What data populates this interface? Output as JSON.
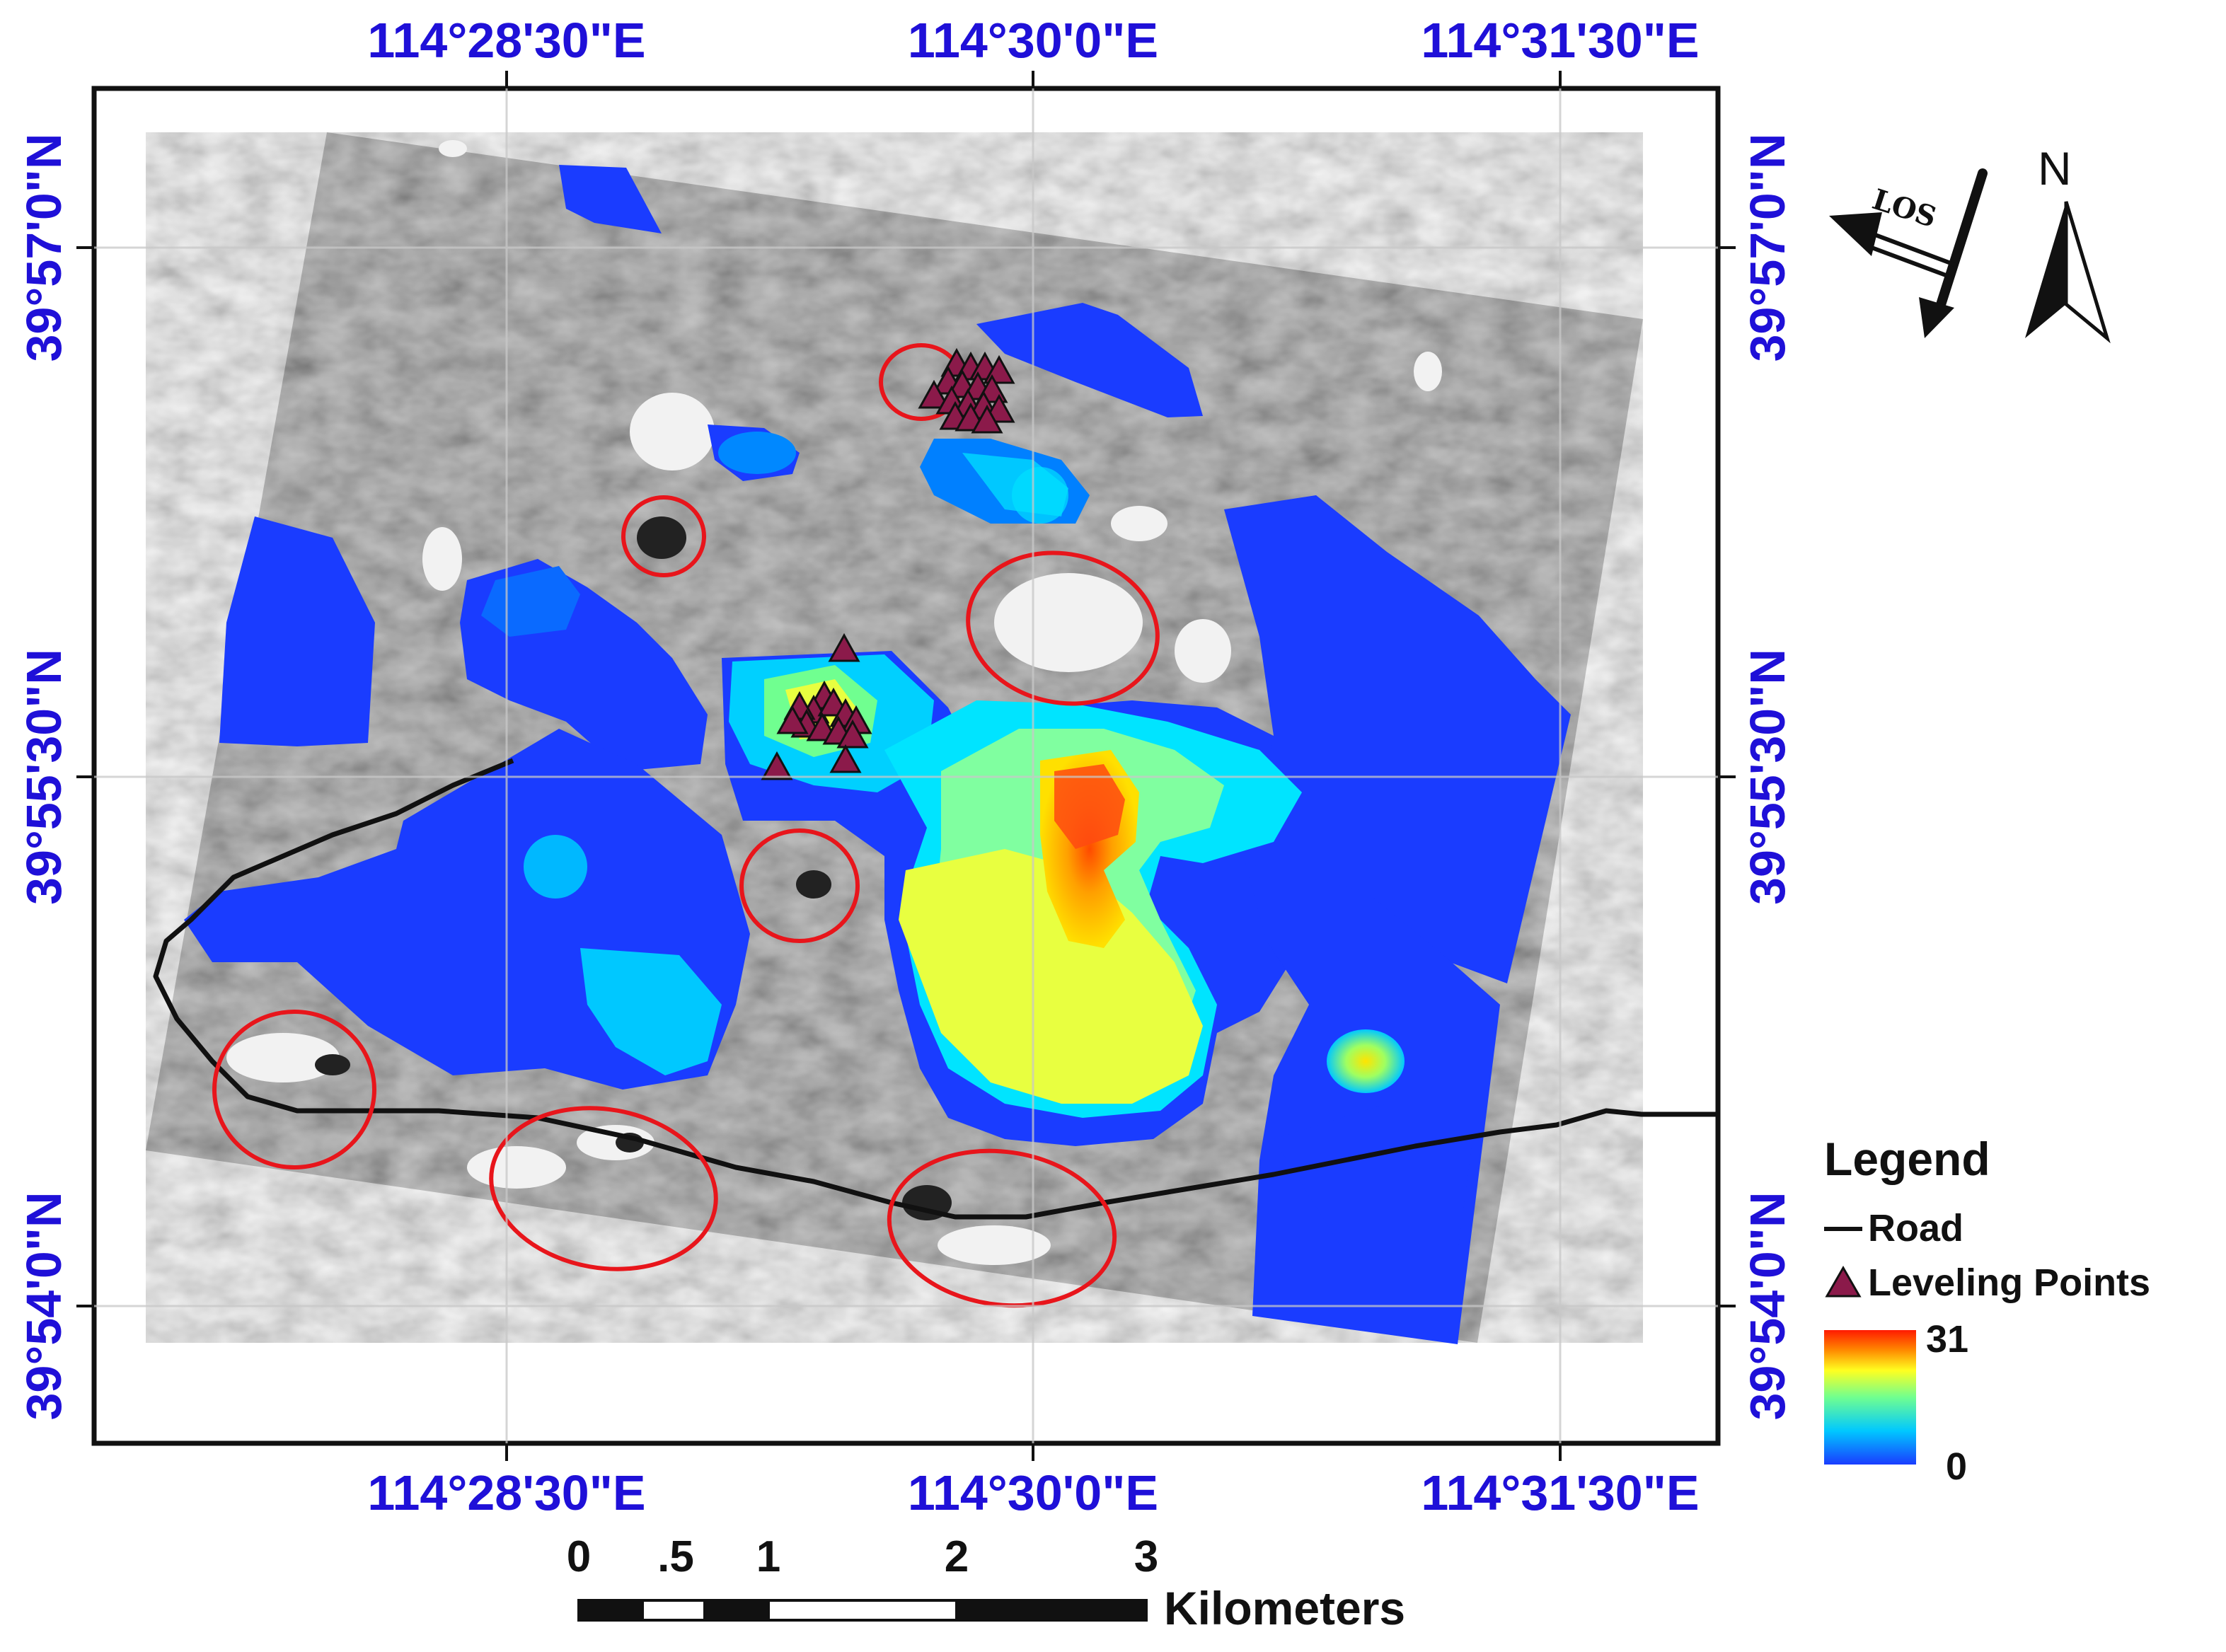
{
  "map": {
    "lon_labels_top": [
      "114°28'30\"E",
      "114°30'0\"E",
      "114°31'30\"E"
    ],
    "lon_labels_bottom": [
      "114°28'30\"E",
      "114°30'0\"E",
      "114°31'30\"E"
    ],
    "lat_labels_left": [
      "39°57'0\"N",
      "39°55'30\"N",
      "39°54'0\"N"
    ],
    "lat_labels_right": [
      "39°57'0\"N",
      "39°55'30\"N",
      "39°54'0\"N"
    ],
    "label_color": "#1f10d8"
  },
  "legend": {
    "title": "Legend",
    "items": [
      {
        "label": "Road",
        "symbol": "black-line-icon"
      },
      {
        "label": "Leveling Points",
        "symbol": "triangle-icon",
        "color": "#8b1a4a"
      }
    ],
    "colorbar": {
      "max_label": "31",
      "min_label": "0",
      "colors": [
        "#1a3cff",
        "#00e5ff",
        "#80ff80",
        "#ffff20",
        "#ff7a00",
        "#ff1a00"
      ]
    }
  },
  "scale_bar": {
    "labels": [
      "0",
      ".5",
      "1",
      "2",
      "3"
    ],
    "units": "Kilometers"
  },
  "north_arrow": {
    "label": "N"
  },
  "los_arrow": {
    "label": "LOS"
  }
}
